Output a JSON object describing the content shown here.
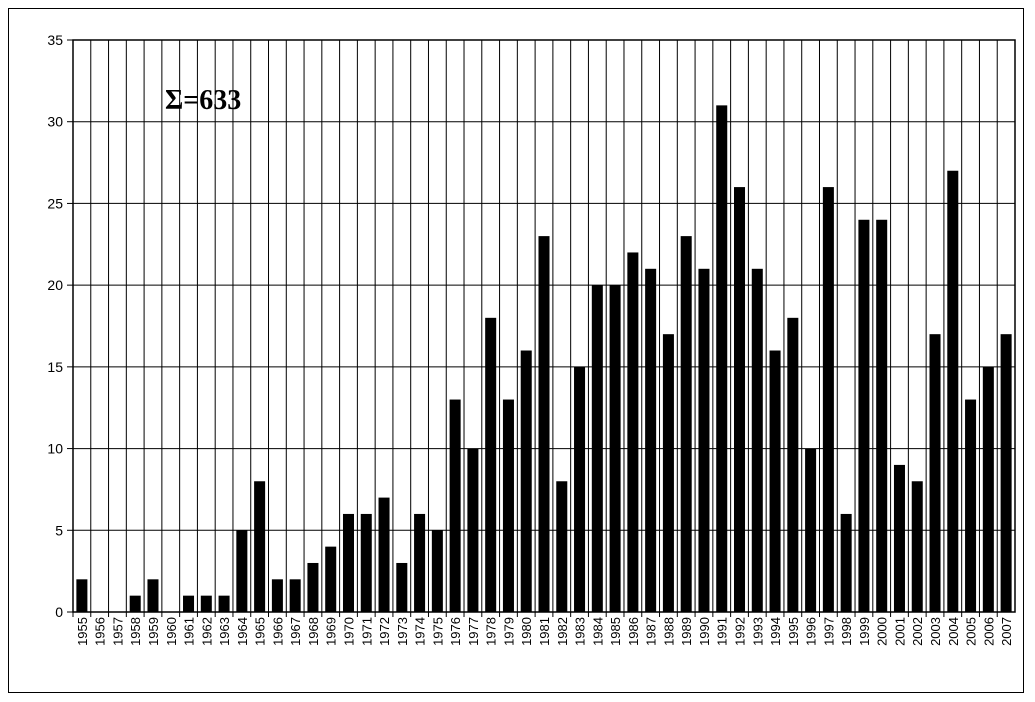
{
  "chart_data": {
    "type": "bar",
    "title": "",
    "xlabel": "",
    "ylabel": "",
    "annotation": "Σ=633",
    "ylim": [
      0,
      35
    ],
    "yticks": [
      0,
      5,
      10,
      15,
      20,
      25,
      30,
      35
    ],
    "grid": true,
    "categories": [
      "1955",
      "1956",
      "1957",
      "1958",
      "1959",
      "1960",
      "1961",
      "1962",
      "1963",
      "1964",
      "1965",
      "1966",
      "1967",
      "1968",
      "1969",
      "1970",
      "1971",
      "1972",
      "1973",
      "1974",
      "1975",
      "1976",
      "1977",
      "1978",
      "1979",
      "1980",
      "1981",
      "1982",
      "1983",
      "1984",
      "1985",
      "1986",
      "1987",
      "1988",
      "1989",
      "1990",
      "1991",
      "1992",
      "1993",
      "1994",
      "1995",
      "1996",
      "1997",
      "1998",
      "1999",
      "2000",
      "2001",
      "2002",
      "2003",
      "2004",
      "2005",
      "2006",
      "2007"
    ],
    "values": [
      2,
      0,
      0,
      1,
      2,
      0,
      1,
      1,
      1,
      5,
      8,
      2,
      2,
      3,
      4,
      6,
      6,
      7,
      3,
      6,
      5,
      13,
      10,
      18,
      13,
      16,
      23,
      8,
      15,
      20,
      20,
      22,
      21,
      17,
      23,
      21,
      31,
      26,
      21,
      16,
      18,
      10,
      26,
      6,
      24,
      24,
      9,
      8,
      17,
      27,
      13,
      15,
      17
    ],
    "bar_color": "#000000"
  }
}
